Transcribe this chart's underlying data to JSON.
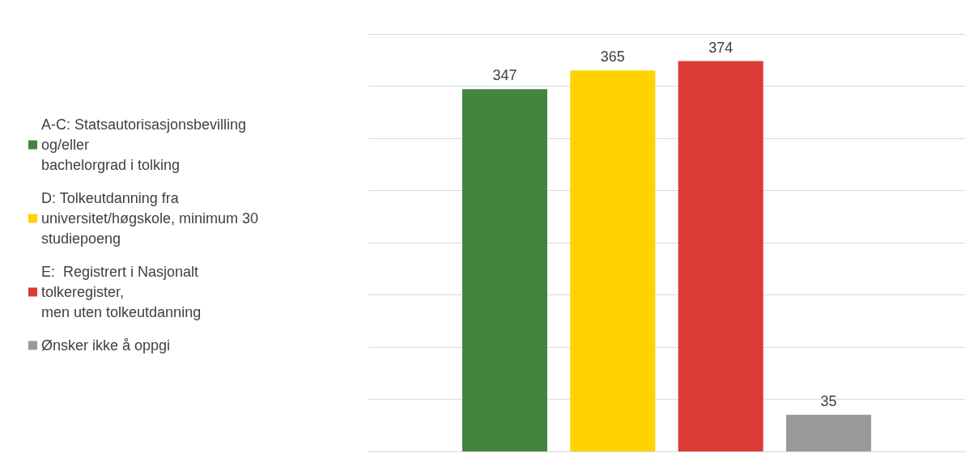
{
  "chart_data": {
    "type": "bar",
    "categories": [
      null
    ],
    "series": [
      {
        "name": "A-C: Statsautorisasjonsbevilling\nog/eller\nbachelorgrad i tolking",
        "color": "#43843f",
        "values": [
          347
        ]
      },
      {
        "name": "D: Tolkeutdanning fra\nuniversitet/høgskole, minimum 30\nstudiepoeng",
        "color": "#ffd200",
        "values": [
          365
        ]
      },
      {
        "name": "E:  Registrert i Nasjonalt\ntolkeregister,\nmen uten tolkeutdanning",
        "color": "#dc3b36",
        "values": [
          374
        ]
      },
      {
        "name": "Ønsker ikke å oppgi",
        "color": "#999999",
        "values": [
          35
        ]
      }
    ],
    "ylim": [
      0,
      400
    ],
    "yticks": [
      {
        "value": 0,
        "label": null
      },
      {
        "value": 50,
        "label": null
      },
      {
        "value": 100,
        "label": null
      },
      {
        "value": 150,
        "label": null
      },
      {
        "value": 200,
        "label": null
      },
      {
        "value": 250,
        "label": null
      },
      {
        "value": 300,
        "label": null
      },
      {
        "value": 350,
        "label": null
      },
      {
        "value": 400,
        "label": null
      }
    ],
    "grid": "y",
    "legend": "left",
    "data_labels": true
  }
}
